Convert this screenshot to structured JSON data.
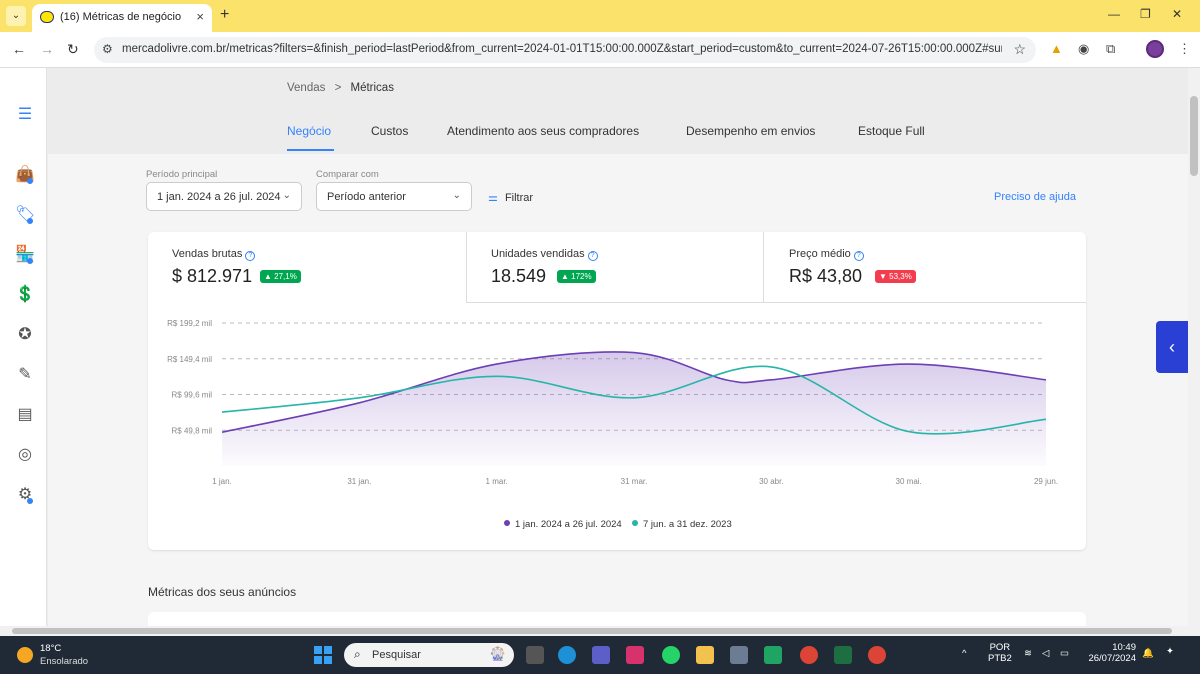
{
  "browser": {
    "tab_title": "(16) Métricas de negócio",
    "url": "mercadolivre.com.br/metricas?filters=&finish_period=lastPeriod&from_current=2024-01-01T15:00:00.000Z&start_period=custom&to_current=2024-07-26T15:00:00.000Z#summary"
  },
  "breadcrumb": {
    "parent": "Vendas",
    "separator": ">",
    "current": "Métricas"
  },
  "tabs": [
    "Negócio",
    "Custos",
    "Atendimento aos seus compradores",
    "Desempenho em envios",
    "Estoque Full"
  ],
  "filters": {
    "main_period_label": "Período principal",
    "main_period_value": "1 jan. 2024 a 26 jul. 2024",
    "compare_label": "Comparar com",
    "compare_value": "Período anterior",
    "filter_label": "Filtrar",
    "help_link": "Preciso de ajuda"
  },
  "kpis": [
    {
      "label": "Vendas brutas",
      "value": "$ 812.971",
      "badge": "▲ 27,1%",
      "trend": "up"
    },
    {
      "label": "Unidades vendidas",
      "value": "18.549",
      "badge": "▲ 172%",
      "trend": "up"
    },
    {
      "label": "Preço médio",
      "value": "R$ 43,80",
      "badge": "▼ 53,3%",
      "trend": "down"
    }
  ],
  "chart_data": {
    "type": "area",
    "y_ticks": [
      "R$ 49,8 mil",
      "R$ 99,6 mil",
      "R$ 149,4 mil",
      "R$ 199,2 mil"
    ],
    "x_ticks": [
      "1 jan.",
      "31 jan.",
      "1 mar.",
      "31 mar.",
      "30 abr.",
      "30 mai.",
      "29 jun."
    ],
    "ylim": [
      0,
      199.2
    ],
    "series": [
      {
        "name": "1 jan. 2024 a 26 jul. 2024",
        "color": "#6c3fb5",
        "fill": true,
        "x": [
          "1 jan.",
          "31 jan.",
          "1 mar.",
          "31 mar.",
          "20 abr.",
          "30 abr.",
          "30 mai.",
          "29 jun."
        ],
        "values": [
          47,
          88,
          142,
          158,
          120,
          120,
          142,
          120
        ]
      },
      {
        "name": "7 jun. a 31 dez. 2023",
        "color": "#26b5a8",
        "fill": false,
        "x": [
          "1 jan.",
          "31 jan.",
          "1 mar.",
          "31 mar.",
          "30 abr.",
          "30 mai.",
          "29 jun."
        ],
        "values": [
          75,
          95,
          125,
          95,
          138,
          48,
          65
        ]
      }
    ],
    "grid": true,
    "legend": "bottom-center"
  },
  "section_title": "Métricas dos seus anúncios",
  "taskbar": {
    "weather_temp": "18°C",
    "weather_desc": "Ensolarado",
    "search_placeholder": "Pesquisar",
    "lang": "POR",
    "lang2": "PTB2",
    "time": "10:49",
    "date": "26/07/2024"
  }
}
